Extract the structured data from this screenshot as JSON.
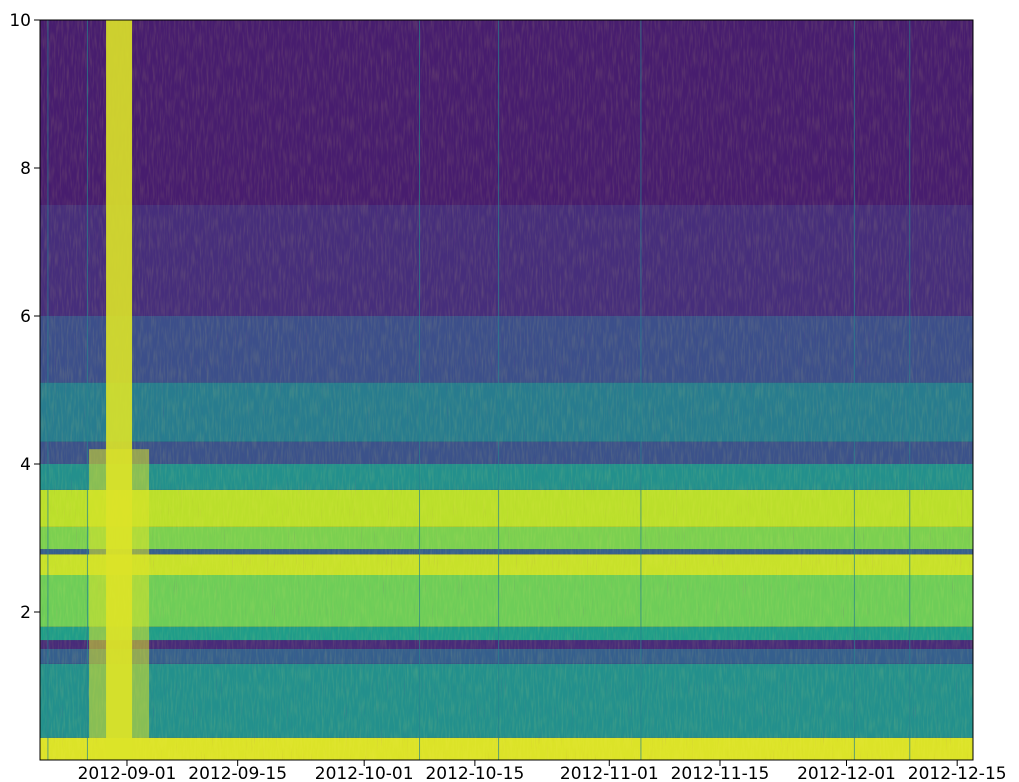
{
  "chart_data": {
    "type": "heatmap",
    "title": "",
    "xlabel": "",
    "ylabel": "",
    "colormap": "viridis",
    "ylim": [
      0,
      10
    ],
    "y_ticks": [
      2,
      4,
      6,
      8,
      10
    ],
    "y_tick_labels": [
      "2",
      "4",
      "6",
      "8",
      "10"
    ],
    "x_range": [
      "2012-08-21",
      "2012-12-17"
    ],
    "x_ticks": [
      "2012-09-01",
      "2012-09-15",
      "2012-10-01",
      "2012-10-15",
      "2012-11-01",
      "2012-11-15",
      "2012-12-01",
      "2012-12-15"
    ],
    "x_tick_labels": [
      "2012-09-01",
      "2012-09-15",
      "2012-10-01",
      "2012-10-15",
      "2012-11-01",
      "2012-11-15",
      "2012-12-01",
      "2012-12-15"
    ],
    "bright_columns": [
      {
        "date": "2012-08-31",
        "intensity": 0.95
      }
    ],
    "thin_lines": [
      "2012-08-22",
      "2012-08-27",
      "2012-10-08",
      "2012-10-18",
      "2012-11-05",
      "2012-12-02",
      "2012-12-09"
    ],
    "bands": [
      {
        "y0": 0.0,
        "y1": 0.3,
        "intensity": 0.95
      },
      {
        "y0": 0.3,
        "y1": 1.3,
        "intensity": 0.5
      },
      {
        "y0": 1.3,
        "y1": 1.5,
        "intensity": 0.3
      },
      {
        "y0": 1.5,
        "y1": 1.62,
        "intensity": 0.12
      },
      {
        "y0": 1.62,
        "y1": 1.8,
        "intensity": 0.55
      },
      {
        "y0": 1.8,
        "y1": 2.5,
        "intensity": 0.78
      },
      {
        "y0": 2.5,
        "y1": 2.78,
        "intensity": 0.92
      },
      {
        "y0": 2.78,
        "y1": 2.85,
        "intensity": 0.3
      },
      {
        "y0": 2.85,
        "y1": 3.15,
        "intensity": 0.8
      },
      {
        "y0": 3.15,
        "y1": 3.65,
        "intensity": 0.9
      },
      {
        "y0": 3.65,
        "y1": 4.0,
        "intensity": 0.5
      },
      {
        "y0": 4.0,
        "y1": 4.3,
        "intensity": 0.25
      },
      {
        "y0": 4.3,
        "y1": 5.1,
        "intensity": 0.42
      },
      {
        "y0": 5.1,
        "y1": 6.0,
        "intensity": 0.24
      },
      {
        "y0": 6.0,
        "y1": 7.5,
        "intensity": 0.13
      },
      {
        "y0": 7.5,
        "y1": 10.0,
        "intensity": 0.08
      }
    ]
  }
}
